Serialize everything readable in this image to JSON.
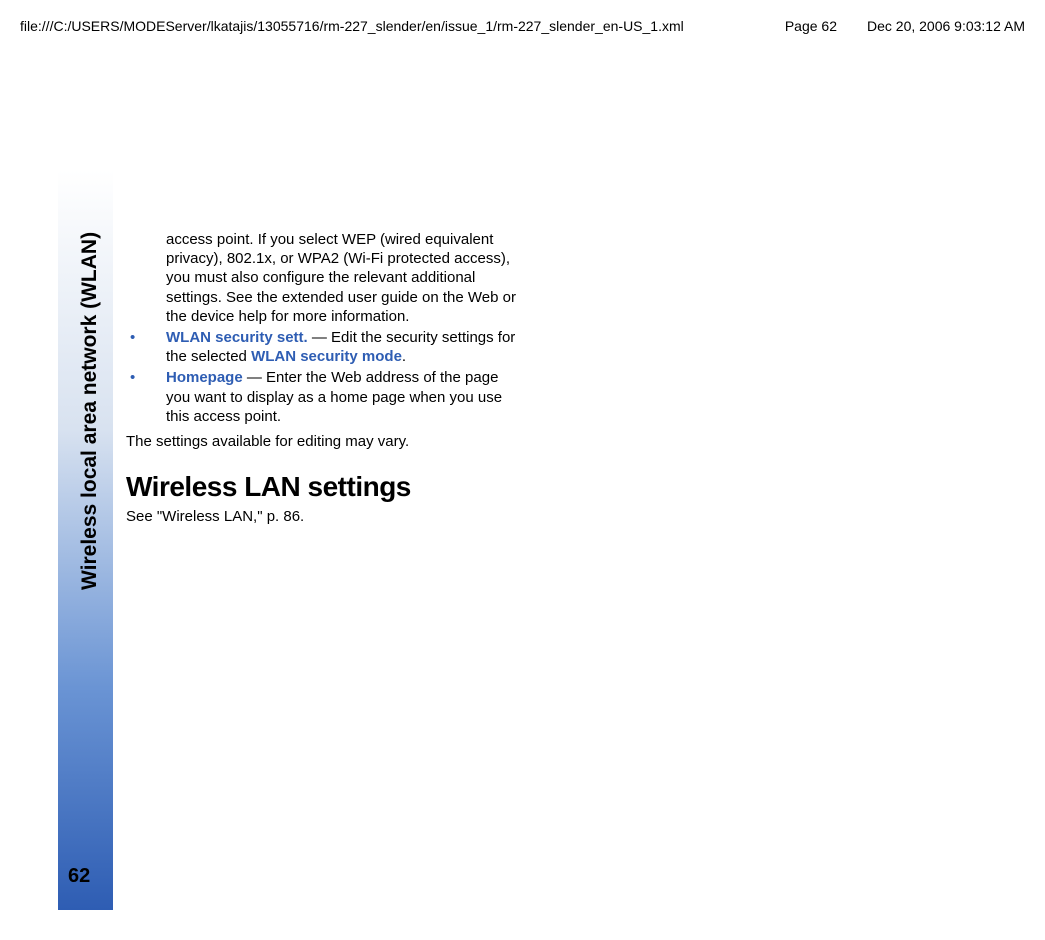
{
  "header": {
    "file_path": "file:///C:/USERS/MODEServer/lkatajis/13055716/rm-227_slender/en/issue_1/rm-227_slender_en-US_1.xml",
    "page_label": "Page 62",
    "timestamp": "Dec 20, 2006 9:03:12 AM"
  },
  "sidebar": {
    "section_title": "Wireless local area network (WLAN)",
    "page_number": "62"
  },
  "body": {
    "intro_continuation": "access point. If you select WEP (wired equivalent privacy), 802.1x, or WPA2 (Wi-Fi protected access), you must also configure the relevant additional settings. See the extended user guide on the Web or the device help for more information.",
    "bullets": [
      {
        "term": "WLAN security sett.",
        "sep": " — ",
        "text_before_inline": "Edit the security settings for the selected ",
        "inline_term": "WLAN security mode",
        "text_after_inline": "."
      },
      {
        "term": "Homepage",
        "sep": " — ",
        "text": "Enter the Web address of the page you want to display as a home page when you use this access point."
      }
    ],
    "note": "The settings available for editing may vary.",
    "heading": "Wireless LAN settings",
    "see_ref": "See \"Wireless LAN,\" p. 86."
  }
}
